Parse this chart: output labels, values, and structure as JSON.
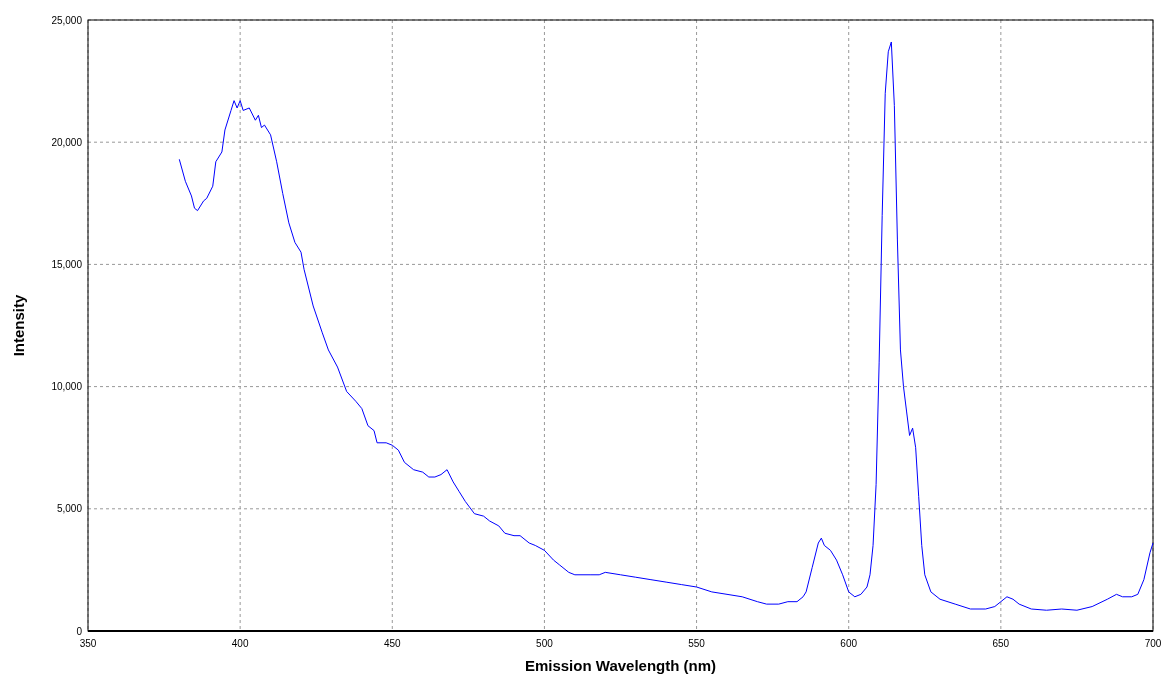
{
  "chart_data": {
    "type": "line",
    "xlabel": "Emission Wavelength (nm)",
    "ylabel": "Intensity",
    "xlim": [
      350,
      700
    ],
    "xticks": [
      350,
      400,
      450,
      500,
      550,
      600,
      650,
      700
    ],
    "ylim": [
      0,
      25000
    ],
    "yticks": [
      {
        "value": 0,
        "label": "0"
      },
      {
        "value": 5000,
        "label": "5,000"
      },
      {
        "value": 10000,
        "label": "10,000"
      },
      {
        "value": 15000,
        "label": "15,000"
      },
      {
        "value": 20000,
        "label": "20,000"
      },
      {
        "value": 25000,
        "label": "25,000"
      }
    ],
    "grid": true,
    "series": [
      {
        "color": "#0000ff",
        "x": [
          380,
          382,
          384,
          385,
          386,
          388,
          389,
          391,
          392,
          394,
          395,
          397,
          398,
          399,
          400,
          401,
          403,
          405,
          406,
          407,
          408,
          410,
          412,
          414,
          416,
          418,
          420,
          421,
          424,
          427,
          429,
          432,
          435,
          438,
          440,
          442,
          444,
          445,
          448,
          450,
          452,
          454,
          457,
          460,
          462,
          464,
          466,
          468,
          470,
          472,
          474,
          477,
          480,
          482,
          485,
          487,
          490,
          492,
          495,
          497,
          500,
          503,
          505,
          508,
          510,
          515,
          518,
          520,
          525,
          530,
          535,
          540,
          545,
          550,
          555,
          560,
          565,
          570,
          573,
          577,
          580,
          583,
          585,
          586,
          588,
          590,
          591,
          592,
          594,
          596,
          598,
          600,
          602,
          604,
          606,
          607,
          608,
          609,
          610,
          611,
          612,
          613,
          614,
          615,
          616,
          617,
          618,
          619,
          620,
          621,
          622,
          623,
          624,
          625,
          627,
          630,
          635,
          640,
          645,
          648,
          650,
          652,
          654,
          656,
          660,
          665,
          670,
          675,
          680,
          685,
          688,
          690,
          693,
          695,
          697,
          699,
          700
        ],
        "values": [
          19300,
          18400,
          17800,
          17300,
          17200,
          17600,
          17700,
          18200,
          19200,
          19600,
          20500,
          21300,
          21700,
          21400,
          21700,
          21300,
          21400,
          20900,
          21100,
          20600,
          20700,
          20300,
          19200,
          17900,
          16700,
          15900,
          15500,
          14800,
          13300,
          12200,
          11500,
          10800,
          9800,
          9400,
          9100,
          8400,
          8200,
          7700,
          7700,
          7600,
          7400,
          6900,
          6600,
          6500,
          6300,
          6300,
          6400,
          6600,
          6100,
          5700,
          5300,
          4800,
          4700,
          4500,
          4300,
          4000,
          3900,
          3900,
          3600,
          3500,
          3300,
          2900,
          2700,
          2400,
          2300,
          2300,
          2300,
          2400,
          2300,
          2200,
          2100,
          2000,
          1900,
          1800,
          1600,
          1500,
          1400,
          1200,
          1100,
          1100,
          1200,
          1200,
          1400,
          1600,
          2600,
          3600,
          3800,
          3500,
          3300,
          2900,
          2300,
          1600,
          1400,
          1500,
          1800,
          2300,
          3500,
          6000,
          11000,
          17000,
          22000,
          23700,
          24100,
          21500,
          16000,
          11500,
          10000,
          9000,
          8000,
          8300,
          7500,
          5500,
          3500,
          2300,
          1600,
          1300,
          1100,
          900,
          900,
          1000,
          1200,
          1400,
          1300,
          1100,
          900,
          850,
          900,
          850,
          1000,
          1300,
          1500,
          1400,
          1400,
          1500,
          2100,
          3200,
          3600
        ]
      }
    ]
  }
}
